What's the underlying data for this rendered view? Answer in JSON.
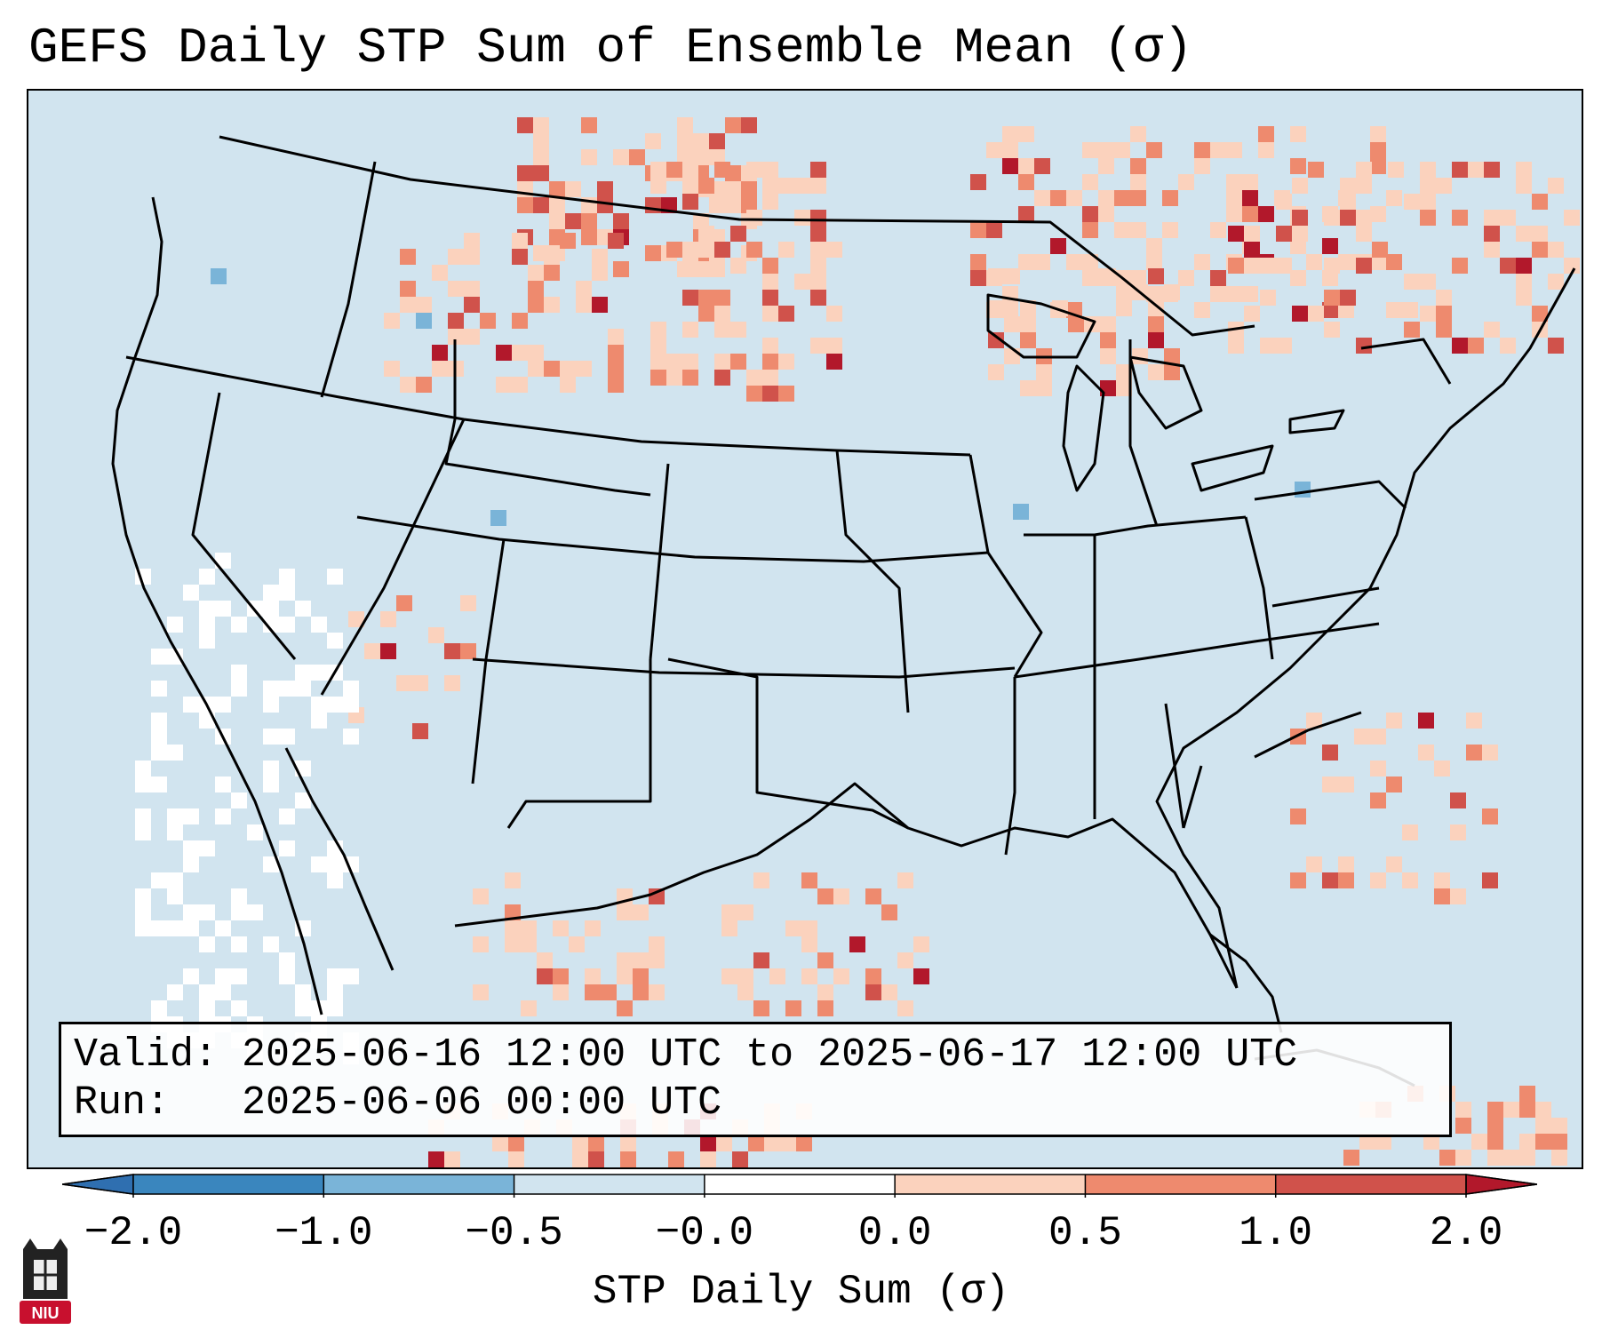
{
  "title": "GEFS Daily STP Sum of Ensemble Mean (σ)",
  "info": {
    "valid_label": "Valid:",
    "valid_text": "2025-06-16 12:00 UTC to 2025-06-17 12:00 UTC",
    "run_label": "Run:",
    "run_text": "2025-06-06 00:00 UTC"
  },
  "colorbar": {
    "label": "STP Daily Sum (σ)",
    "ticks": [
      "−2.0",
      "−1.0",
      "−0.5",
      "−0.0",
      "0.0",
      "0.5",
      "1.0",
      "2.0"
    ],
    "bins": [
      {
        "range": "-2.0 to -1.0",
        "color": "#3a86be"
      },
      {
        "range": "-1.0 to -0.5",
        "color": "#7ab4d8"
      },
      {
        "range": "-0.5 to -0.0",
        "color": "#d1e4ef"
      },
      {
        "range": "-0.0 to 0.0",
        "color": "#ffffff"
      },
      {
        "range": "0.0 to 0.5",
        "color": "#fbd2bd"
      },
      {
        "range": "0.5 to 1.0",
        "color": "#ee8a6e"
      },
      {
        "range": "1.0 to 2.0",
        "color": "#d0524b"
      }
    ],
    "under_color": "#2f6fb0",
    "over_color": "#b2182b"
  },
  "map": {
    "region": "Contiguous United States",
    "projection": "Lambert conformal",
    "background_color": "#d1e4ef",
    "border_color": "#000000"
  },
  "logo": {
    "text": "NIU",
    "name": "niu-logo"
  }
}
